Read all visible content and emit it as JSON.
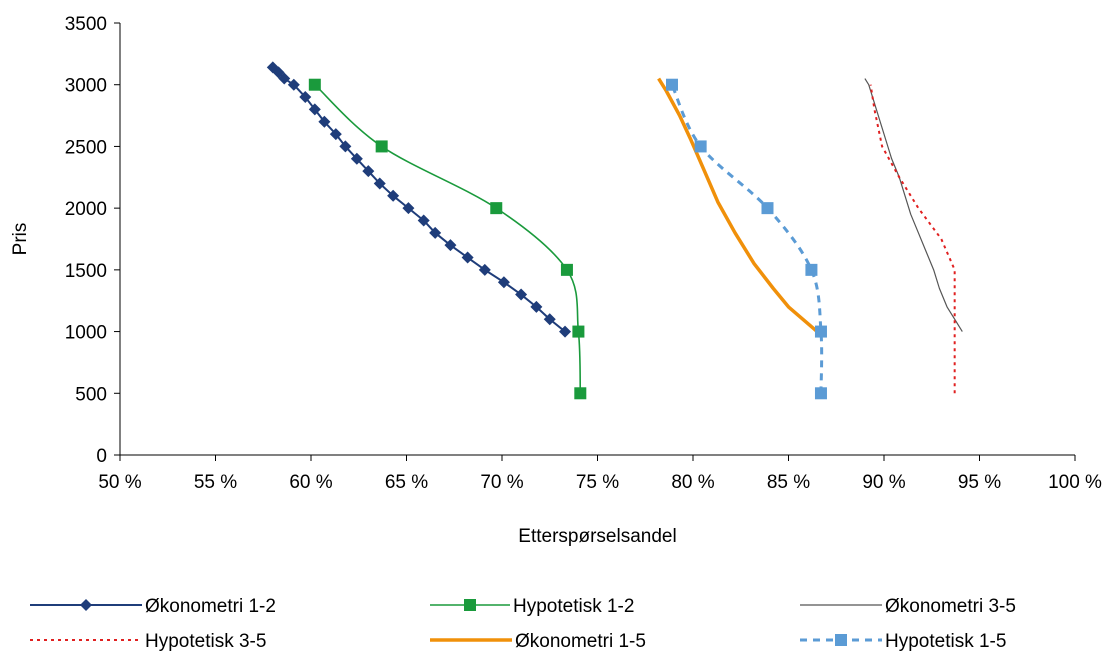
{
  "chart_data": {
    "type": "line",
    "title": "",
    "xlabel": "Etterspørselsandel",
    "ylabel": "Pris",
    "xlim": [
      50,
      100
    ],
    "ylim": [
      0,
      3500
    ],
    "x_ticks": [
      50,
      55,
      60,
      65,
      70,
      75,
      80,
      85,
      90,
      95,
      100
    ],
    "x_tick_labels": [
      "50 %",
      "55 %",
      "60 %",
      "65 %",
      "70 %",
      "75 %",
      "80 %",
      "85 %",
      "90 %",
      "95 %",
      "100 %"
    ],
    "y_ticks": [
      0,
      500,
      1000,
      1500,
      2000,
      2500,
      3000,
      3500
    ],
    "y_tick_labels": [
      "0",
      "500",
      "1000",
      "1500",
      "2000",
      "2500",
      "3000",
      "3500"
    ],
    "grid": false,
    "legend_position": "bottom",
    "series": [
      {
        "name": "Økonometri 1-2",
        "color": "#1f3d7a",
        "style": "solid-diamond",
        "points": [
          [
            73.3,
            1000
          ],
          [
            72.5,
            1100
          ],
          [
            71.8,
            1200
          ],
          [
            71.0,
            1300
          ],
          [
            70.1,
            1400
          ],
          [
            69.1,
            1500
          ],
          [
            68.2,
            1600
          ],
          [
            67.3,
            1700
          ],
          [
            66.5,
            1800
          ],
          [
            65.9,
            1900
          ],
          [
            65.1,
            2000
          ],
          [
            64.3,
            2100
          ],
          [
            63.6,
            2200
          ],
          [
            63.0,
            2300
          ],
          [
            62.4,
            2400
          ],
          [
            61.8,
            2500
          ],
          [
            61.3,
            2600
          ],
          [
            60.7,
            2700
          ],
          [
            60.2,
            2800
          ],
          [
            59.7,
            2900
          ],
          [
            59.1,
            3000
          ],
          [
            58.6,
            3050
          ],
          [
            58.3,
            3100
          ],
          [
            58.0,
            3140
          ]
        ]
      },
      {
        "name": "Hypotetisk 1-2",
        "color": "#1a9a3c",
        "style": "solid-square-smooth",
        "points": [
          [
            74.1,
            500
          ],
          [
            74.0,
            1000
          ],
          [
            73.4,
            1500
          ],
          [
            69.7,
            2000
          ],
          [
            63.7,
            2500
          ],
          [
            60.2,
            3000
          ]
        ]
      },
      {
        "name": "Økonometri 3-5",
        "color": "#555555",
        "style": "thin-solid",
        "points": [
          [
            94.1,
            1000
          ],
          [
            93.7,
            1100
          ],
          [
            93.3,
            1200
          ],
          [
            92.9,
            1350
          ],
          [
            92.6,
            1500
          ],
          [
            92.2,
            1650
          ],
          [
            91.8,
            1800
          ],
          [
            91.4,
            1950
          ],
          [
            91.1,
            2100
          ],
          [
            90.8,
            2250
          ],
          [
            90.4,
            2400
          ],
          [
            90.1,
            2550
          ],
          [
            89.8,
            2700
          ],
          [
            89.5,
            2850
          ],
          [
            89.2,
            3000
          ],
          [
            89.0,
            3050
          ]
        ]
      },
      {
        "name": "Hypotetisk 3-5",
        "color": "#e02020",
        "style": "dotted",
        "points": [
          [
            93.7,
            500
          ],
          [
            93.7,
            800
          ],
          [
            93.7,
            1100
          ],
          [
            93.7,
            1300
          ],
          [
            93.7,
            1500
          ],
          [
            93.0,
            1750
          ],
          [
            91.8,
            2000
          ],
          [
            90.8,
            2250
          ],
          [
            89.9,
            2500
          ],
          [
            89.5,
            2800
          ],
          [
            89.3,
            3000
          ]
        ]
      },
      {
        "name": "Økonometri 1-5",
        "color": "#f0900a",
        "style": "thick-solid",
        "points": [
          [
            86.5,
            1000
          ],
          [
            85.0,
            1200
          ],
          [
            84.2,
            1350
          ],
          [
            83.2,
            1550
          ],
          [
            82.2,
            1800
          ],
          [
            81.3,
            2050
          ],
          [
            80.6,
            2300
          ],
          [
            79.9,
            2550
          ],
          [
            79.3,
            2750
          ],
          [
            78.6,
            2950
          ],
          [
            78.2,
            3050
          ]
        ]
      },
      {
        "name": "Hypotetisk 1-5",
        "color": "#5b9bd5",
        "style": "dashed-square",
        "points": [
          [
            86.7,
            500
          ],
          [
            86.7,
            1000
          ],
          [
            86.2,
            1500
          ],
          [
            83.9,
            2000
          ],
          [
            80.4,
            2500
          ],
          [
            78.9,
            3000
          ]
        ]
      }
    ]
  }
}
